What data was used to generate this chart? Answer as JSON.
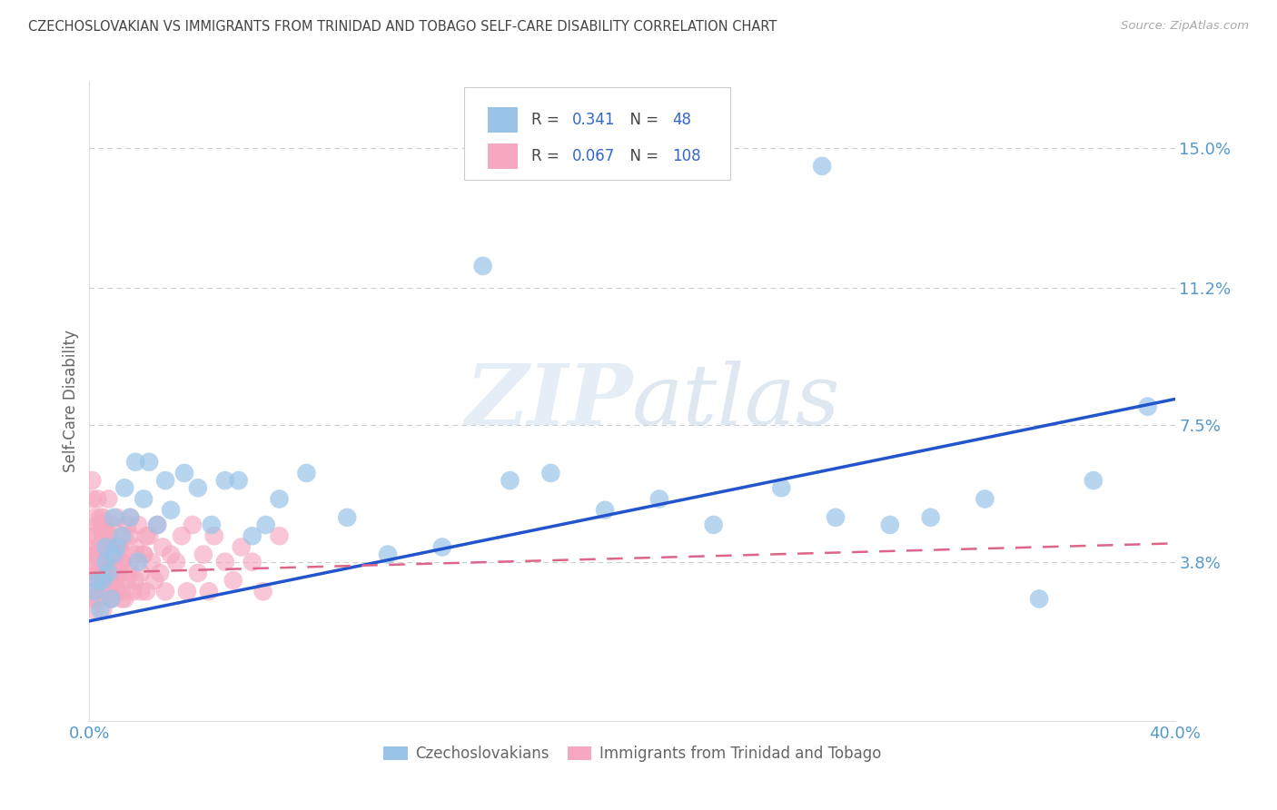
{
  "title": "CZECHOSLOVAKIAN VS IMMIGRANTS FROM TRINIDAD AND TOBAGO SELF-CARE DISABILITY CORRELATION CHART",
  "source": "Source: ZipAtlas.com",
  "ylabel": "Self-Care Disability",
  "xlim": [
    0.0,
    0.4
  ],
  "ylim": [
    -0.005,
    0.168
  ],
  "xtick_positions": [
    0.0,
    0.4
  ],
  "xticklabels": [
    "0.0%",
    "40.0%"
  ],
  "ytick_positions": [
    0.038,
    0.075,
    0.112,
    0.15
  ],
  "ytick_labels": [
    "3.8%",
    "7.5%",
    "11.2%",
    "15.0%"
  ],
  "grid_color": "#cccccc",
  "background_color": "#ffffff",
  "watermark_text": "ZIPatlas",
  "legend_R1": "0.341",
  "legend_N1": "48",
  "legend_R2": "0.067",
  "legend_N2": "108",
  "color_blue": "#99c4e8",
  "color_pink": "#f5a8c0",
  "color_blue_line": "#2255cc",
  "color_pink_line": "#dd6688",
  "title_color": "#444444",
  "source_color": "#aaaaaa",
  "axis_label_color": "#666666",
  "tick_label_color": "#5599cc",
  "legend_num_color": "#3366cc",
  "czech_x": [
    0.002,
    0.004,
    0.005,
    0.006,
    0.007,
    0.008,
    0.009,
    0.01,
    0.012,
    0.015,
    0.018,
    0.02,
    0.025,
    0.028,
    0.03,
    0.04,
    0.05,
    0.06,
    0.07,
    0.08,
    0.095,
    0.11,
    0.13,
    0.155,
    0.17,
    0.19,
    0.21,
    0.23,
    0.255,
    0.275,
    0.295,
    0.31,
    0.33,
    0.35,
    0.37,
    0.003,
    0.006,
    0.009,
    0.013,
    0.017,
    0.022,
    0.035,
    0.045,
    0.055,
    0.065,
    0.39,
    0.27,
    0.145
  ],
  "czech_y": [
    0.03,
    0.025,
    0.033,
    0.038,
    0.035,
    0.028,
    0.04,
    0.042,
    0.045,
    0.05,
    0.038,
    0.055,
    0.048,
    0.06,
    0.052,
    0.058,
    0.06,
    0.045,
    0.055,
    0.062,
    0.05,
    0.04,
    0.042,
    0.06,
    0.062,
    0.052,
    0.055,
    0.048,
    0.058,
    0.05,
    0.048,
    0.05,
    0.055,
    0.028,
    0.06,
    0.033,
    0.042,
    0.05,
    0.058,
    0.065,
    0.065,
    0.062,
    0.048,
    0.06,
    0.048,
    0.08,
    0.145,
    0.118
  ],
  "tt_x": [
    0.001,
    0.001,
    0.001,
    0.002,
    0.002,
    0.002,
    0.002,
    0.003,
    0.003,
    0.003,
    0.003,
    0.004,
    0.004,
    0.004,
    0.004,
    0.005,
    0.005,
    0.005,
    0.005,
    0.005,
    0.006,
    0.006,
    0.006,
    0.007,
    0.007,
    0.007,
    0.008,
    0.008,
    0.008,
    0.009,
    0.009,
    0.01,
    0.01,
    0.01,
    0.011,
    0.011,
    0.012,
    0.012,
    0.013,
    0.014,
    0.015,
    0.015,
    0.016,
    0.017,
    0.018,
    0.019,
    0.02,
    0.021,
    0.022,
    0.023,
    0.024,
    0.025,
    0.026,
    0.027,
    0.028,
    0.03,
    0.032,
    0.034,
    0.036,
    0.038,
    0.04,
    0.042,
    0.044,
    0.046,
    0.05,
    0.053,
    0.056,
    0.06,
    0.064,
    0.07,
    0.001,
    0.002,
    0.003,
    0.003,
    0.004,
    0.004,
    0.005,
    0.006,
    0.006,
    0.007,
    0.008,
    0.009,
    0.01,
    0.011,
    0.012,
    0.014,
    0.015,
    0.017,
    0.019,
    0.021,
    0.001,
    0.002,
    0.002,
    0.003,
    0.004,
    0.005,
    0.005,
    0.006,
    0.007,
    0.008,
    0.009,
    0.01,
    0.011,
    0.012,
    0.013,
    0.015,
    0.017,
    0.02
  ],
  "tt_y": [
    0.035,
    0.028,
    0.04,
    0.03,
    0.038,
    0.045,
    0.025,
    0.033,
    0.042,
    0.048,
    0.028,
    0.036,
    0.04,
    0.05,
    0.03,
    0.038,
    0.045,
    0.032,
    0.05,
    0.025,
    0.04,
    0.035,
    0.048,
    0.03,
    0.042,
    0.055,
    0.038,
    0.028,
    0.045,
    0.033,
    0.048,
    0.04,
    0.03,
    0.05,
    0.035,
    0.042,
    0.038,
    0.028,
    0.045,
    0.033,
    0.05,
    0.038,
    0.03,
    0.042,
    0.048,
    0.035,
    0.04,
    0.03,
    0.045,
    0.038,
    0.033,
    0.048,
    0.035,
    0.042,
    0.03,
    0.04,
    0.038,
    0.045,
    0.03,
    0.048,
    0.035,
    0.04,
    0.03,
    0.045,
    0.038,
    0.033,
    0.042,
    0.038,
    0.03,
    0.045,
    0.055,
    0.045,
    0.035,
    0.04,
    0.038,
    0.03,
    0.048,
    0.035,
    0.045,
    0.04,
    0.028,
    0.038,
    0.033,
    0.042,
    0.03,
    0.048,
    0.035,
    0.04,
    0.03,
    0.045,
    0.06,
    0.05,
    0.04,
    0.055,
    0.042,
    0.035,
    0.048,
    0.038,
    0.045,
    0.03,
    0.04,
    0.035,
    0.042,
    0.038,
    0.028,
    0.045,
    0.033,
    0.04
  ]
}
